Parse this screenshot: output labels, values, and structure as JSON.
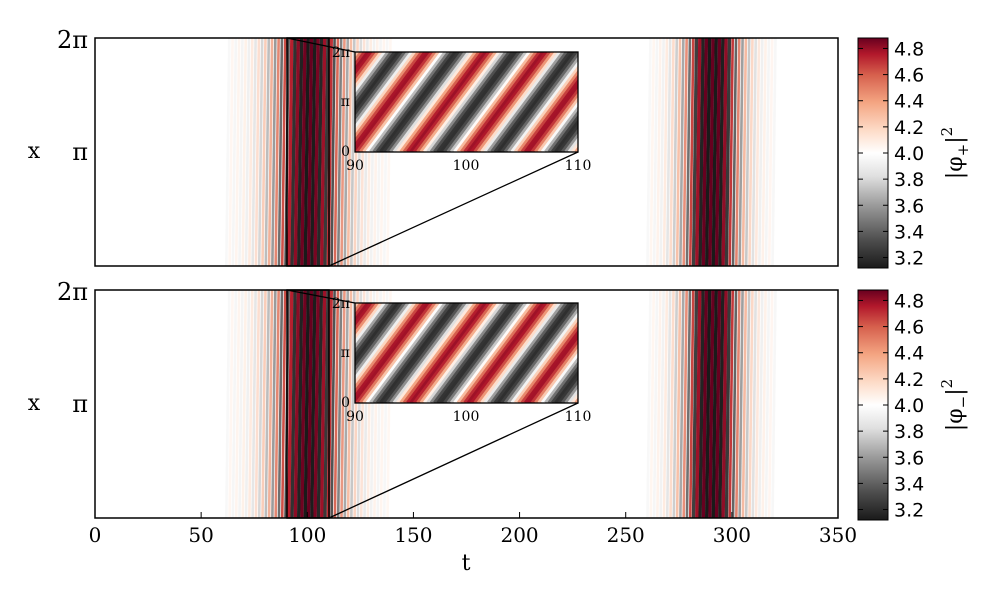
{
  "chart_data": [
    {
      "type": "heatmap",
      "panel": "top",
      "xlabel": "",
      "ylabel": "x",
      "xlim": [
        0,
        350
      ],
      "ylim": [
        0,
        6.2832
      ],
      "yticks": [
        "π",
        "2π"
      ],
      "colorbar": {
        "label": "|φ₊|²",
        "label_base": "|φ",
        "label_sub": "+",
        "label_sup": "2",
        "ticks": [
          "3.2",
          "3.4",
          "3.6",
          "3.8",
          "4.0",
          "4.2",
          "4.4",
          "4.6",
          "4.8"
        ],
        "range": [
          3.12,
          4.88
        ]
      },
      "colormap": "RdGy_r",
      "features": {
        "burst1": {
          "t_start": 65,
          "t_end": 130,
          "peak": 100
        },
        "burst2": {
          "t_start": 255,
          "t_end": 315,
          "peak": 290
        }
      },
      "inset": {
        "xlim": [
          90,
          110
        ],
        "xticks": [
          "90",
          "100",
          "110"
        ],
        "yticks": [
          "0",
          "π",
          "2π"
        ],
        "stripes": "diagonal"
      }
    },
    {
      "type": "heatmap",
      "panel": "bottom",
      "xlabel": "t",
      "ylabel": "x",
      "xlim": [
        0,
        350
      ],
      "xticks": [
        "0",
        "50",
        "100",
        "150",
        "200",
        "250",
        "300",
        "350"
      ],
      "ylim": [
        0,
        6.2832
      ],
      "yticks": [
        "π",
        "2π"
      ],
      "colorbar": {
        "label": "|φ₋|²",
        "label_base": "|φ",
        "label_sub": "−",
        "label_sup": "2",
        "ticks": [
          "3.2",
          "3.4",
          "3.6",
          "3.8",
          "4.0",
          "4.2",
          "4.4",
          "4.6",
          "4.8"
        ],
        "range": [
          3.12,
          4.88
        ]
      },
      "colormap": "RdGy_r",
      "features": {
        "burst1": {
          "t_start": 65,
          "t_end": 130,
          "peak": 100
        },
        "burst2": {
          "t_start": 255,
          "t_end": 315,
          "peak": 290
        }
      },
      "inset": {
        "xlim": [
          90,
          110
        ],
        "xticks": [
          "90",
          "100",
          "110"
        ],
        "yticks": [
          "0",
          "π",
          "2π"
        ],
        "stripes": "diagonal"
      }
    }
  ]
}
